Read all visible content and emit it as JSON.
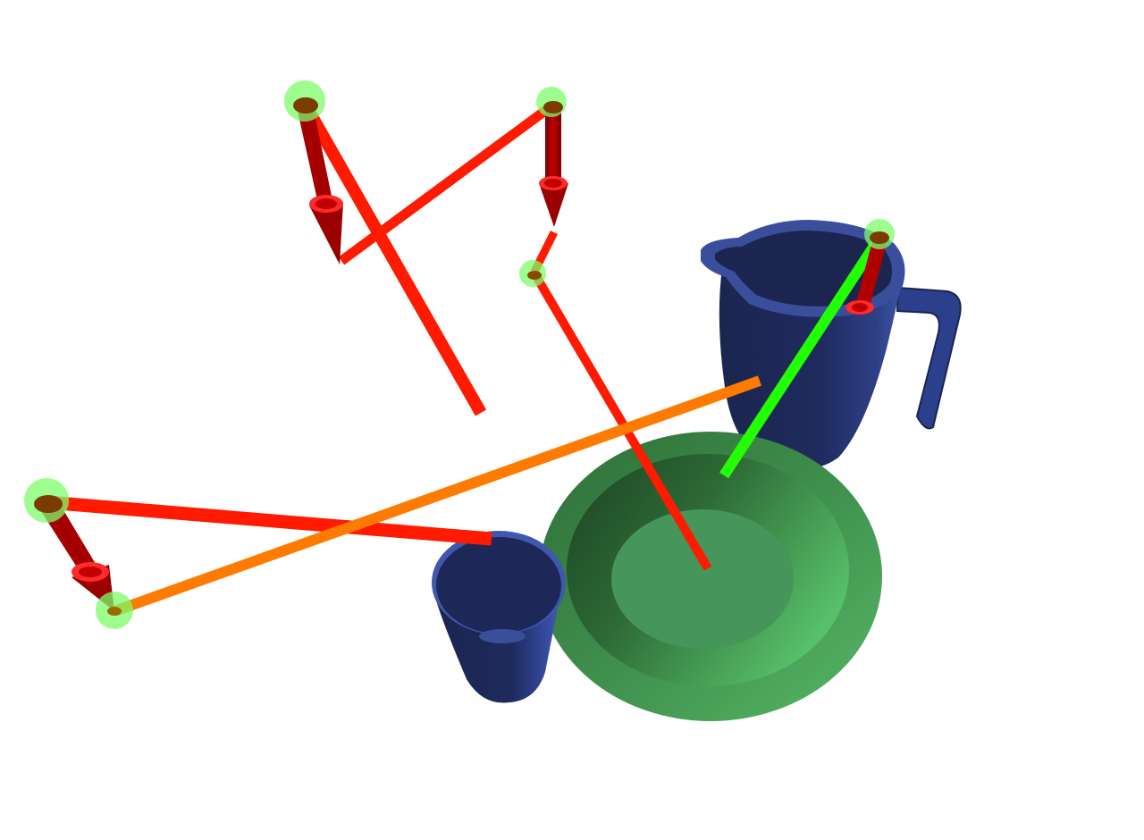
{
  "scene": {
    "objects": [
      {
        "name": "pitcher",
        "color": "#1e2a5a"
      },
      {
        "name": "cup",
        "color": "#1e2a5a"
      },
      {
        "name": "bowl",
        "color": "#4a9a58"
      }
    ],
    "colors": {
      "red_path": "#ff1a00",
      "orange_path": "#ff7a00",
      "green_path": "#22ff00",
      "waypoint": "#7cfc6a",
      "arrow": "#b00000",
      "pitcher_dark": "#1b2550",
      "pitcher_light": "#3a4f9a",
      "bowl_dark": "#1f4a26",
      "bowl_light": "#5cc26c"
    }
  }
}
